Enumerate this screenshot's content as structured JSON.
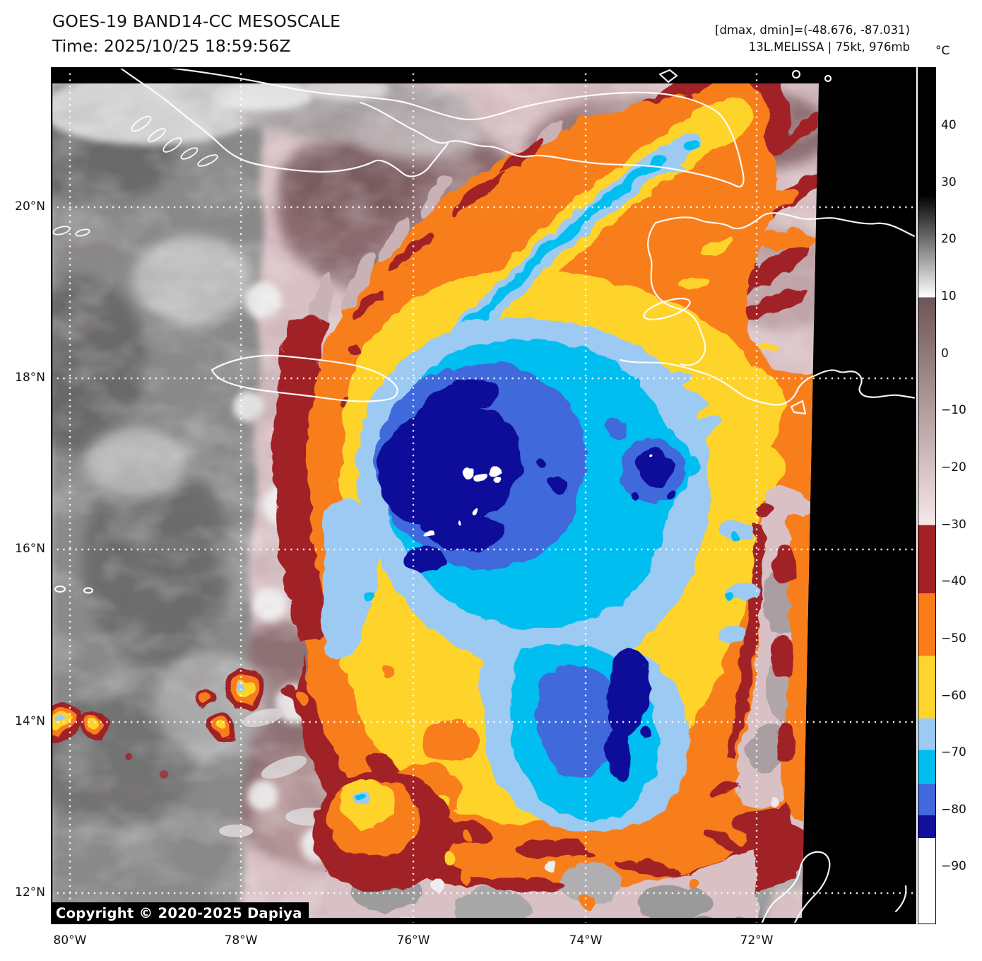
{
  "header": {
    "title": "GOES-19 BAND14-CC MESOSCALE",
    "time": "Time: 2025/10/25 18:59:56Z"
  },
  "annotations": {
    "range": "[dmax, dmin]=(-48.676, -87.031)",
    "storm": "13L.MELISSA | 75kt, 976mb"
  },
  "colorbar": {
    "unit": "°C",
    "ticks": [
      "40",
      "30",
      "20",
      "10",
      "0",
      "−10",
      "−20",
      "−30",
      "−40",
      "−50",
      "−60",
      "−70",
      "−80",
      "−90"
    ]
  },
  "axes": {
    "lat": [
      "20°N",
      "18°N",
      "16°N",
      "14°N",
      "12°N"
    ],
    "lon": [
      "80°W",
      "78°W",
      "76°W",
      "74°W",
      "72°W"
    ]
  },
  "footer": {
    "copyright": "Copyright © 2020-2025 Dapiya"
  },
  "palette": {
    "background": "#000000",
    "gray_cloud": "#8a8a8a",
    "mauve_warm": "#8a6a6e",
    "pale_pink": "#d8c0c4",
    "dark_red": "#a02026",
    "orange": "#f87e1e",
    "yellow": "#ffd42c",
    "light_blue": "#9ccaf2",
    "cyan": "#00beef",
    "royal_blue": "#4169dc",
    "navy": "#10109a",
    "cold_white": "#ffffff",
    "coastline": "#ffffff",
    "gridline": "#ffffff"
  }
}
